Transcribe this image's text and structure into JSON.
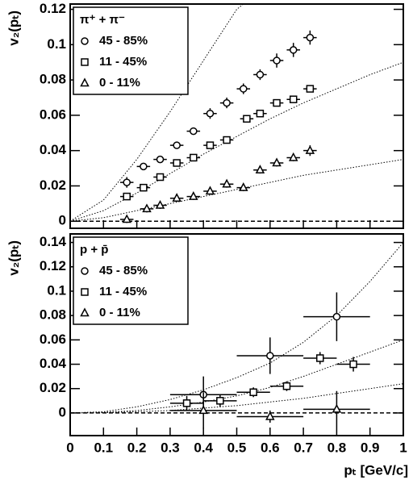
{
  "chart_data": [
    {
      "type": "scatter",
      "ylabel": "v₂(pₜ)",
      "legend_title": "π⁺ + π⁻",
      "legend": "upper left",
      "xlim": [
        0,
        1
      ],
      "xticks": [
        0,
        0.1,
        0.2,
        0.3,
        0.4,
        0.5,
        0.6,
        0.7,
        0.8,
        0.9,
        1
      ],
      "ylim": [
        -0.004,
        0.123
      ],
      "yticks": [
        0,
        0.02,
        0.04,
        0.06,
        0.08,
        0.1,
        0.12
      ],
      "zero_line": true,
      "series": [
        {
          "name": "45 - 85%",
          "marker": "circle",
          "color": "#000000",
          "x": [
            0.17,
            0.22,
            0.27,
            0.32,
            0.37,
            0.42,
            0.47,
            0.52,
            0.57,
            0.62,
            0.67,
            0.72
          ],
          "values": [
            0.022,
            0.031,
            0.035,
            0.043,
            0.051,
            0.061,
            0.067,
            0.075,
            0.083,
            0.091,
            0.097,
            0.104
          ],
          "errors": [
            0.003,
            0.002,
            0.002,
            0.002,
            0.002,
            0.003,
            0.003,
            0.003,
            0.003,
            0.004,
            0.004,
            0.004
          ],
          "xerrors": [
            0.02,
            0.02,
            0.02,
            0.02,
            0.02,
            0.02,
            0.02,
            0.02,
            0.02,
            0.02,
            0.02,
            0.02
          ]
        },
        {
          "name": "11 - 45%",
          "marker": "square",
          "color": "#000000",
          "x": [
            0.17,
            0.22,
            0.27,
            0.32,
            0.37,
            0.42,
            0.47,
            0.53,
            0.57,
            0.62,
            0.67,
            0.72
          ],
          "values": [
            0.014,
            0.019,
            0.025,
            0.033,
            0.036,
            0.043,
            0.046,
            0.058,
            0.061,
            0.067,
            0.069,
            0.075
          ],
          "errors": [
            0.002,
            0.002,
            0.002,
            0.002,
            0.002,
            0.002,
            0.002,
            0.002,
            0.002,
            0.002,
            0.002,
            0.002
          ],
          "xerrors": [
            0.02,
            0.02,
            0.02,
            0.02,
            0.02,
            0.02,
            0.02,
            0.02,
            0.02,
            0.02,
            0.02,
            0.02
          ]
        },
        {
          "name": "0 - 11%",
          "marker": "triangle",
          "color": "#000000",
          "x": [
            0.17,
            0.23,
            0.27,
            0.32,
            0.37,
            0.42,
            0.47,
            0.52,
            0.57,
            0.62,
            0.67,
            0.72
          ],
          "values": [
            0.001,
            0.007,
            0.009,
            0.013,
            0.014,
            0.017,
            0.021,
            0.019,
            0.029,
            0.033,
            0.036,
            0.04
          ],
          "errors": [
            0.002,
            0.002,
            0.002,
            0.002,
            0.002,
            0.002,
            0.002,
            0.002,
            0.002,
            0.002,
            0.002,
            0.003
          ],
          "xerrors": [
            0.02,
            0.02,
            0.02,
            0.02,
            0.02,
            0.02,
            0.02,
            0.02,
            0.02,
            0.02,
            0.02,
            0.02
          ]
        }
      ],
      "curves": [
        {
          "x": [
            0,
            0.1,
            0.2,
            0.3,
            0.4,
            0.5,
            0.52
          ],
          "values": [
            0,
            0.012,
            0.035,
            0.062,
            0.091,
            0.12,
            0.123
          ]
        },
        {
          "x": [
            0,
            0.1,
            0.2,
            0.3,
            0.4,
            0.5,
            0.6,
            0.7,
            0.8,
            0.9,
            1
          ],
          "values": [
            0,
            0.006,
            0.016,
            0.027,
            0.038,
            0.048,
            0.058,
            0.067,
            0.075,
            0.083,
            0.09
          ]
        },
        {
          "x": [
            0,
            0.1,
            0.2,
            0.3,
            0.4,
            0.5,
            0.6,
            0.7,
            0.8,
            0.9,
            1
          ],
          "values": [
            0,
            0.002,
            0.006,
            0.01,
            0.014,
            0.018,
            0.022,
            0.026,
            0.029,
            0.032,
            0.035
          ]
        }
      ]
    },
    {
      "type": "scatter",
      "ylabel": "v₂(pₜ)",
      "xlabel": "pₜ [GeV/c]",
      "legend_title": "p + p̄",
      "legend": "upper left",
      "xlim": [
        0,
        1
      ],
      "xticks": [
        0,
        0.1,
        0.2,
        0.3,
        0.4,
        0.5,
        0.6,
        0.7,
        0.8,
        0.9,
        1
      ],
      "ylim": [
        -0.0186,
        0.147
      ],
      "yticks": [
        0,
        0.02,
        0.04,
        0.06,
        0.08,
        0.1,
        0.12,
        0.14
      ],
      "zero_line": true,
      "series": [
        {
          "name": "45 - 85%",
          "marker": "circle",
          "color": "#000000",
          "x": [
            0.4,
            0.6,
            0.8
          ],
          "values": [
            0.015,
            0.047,
            0.079
          ],
          "errors": [
            0.015,
            0.015,
            0.02
          ],
          "xerrors": [
            0.1,
            0.1,
            0.1
          ]
        },
        {
          "name": "11 - 45%",
          "marker": "square",
          "color": "#000000",
          "x": [
            0.35,
            0.45,
            0.55,
            0.65,
            0.75,
            0.85
          ],
          "values": [
            0.008,
            0.01,
            0.017,
            0.022,
            0.045,
            0.04
          ],
          "errors": [
            0.006,
            0.005,
            0.004,
            0.004,
            0.005,
            0.006
          ],
          "xerrors": [
            0.05,
            0.05,
            0.05,
            0.05,
            0.05,
            0.05
          ]
        },
        {
          "name": "0 - 11%",
          "marker": "triangle",
          "color": "#000000",
          "x": [
            0.4,
            0.6,
            0.8
          ],
          "values": [
            0.002,
            -0.003,
            0.003
          ],
          "errors": [
            0.015,
            0.005,
            0.015
          ],
          "xerrors": [
            0.1,
            0.1,
            0.1
          ]
        }
      ],
      "curves": [
        {
          "x": [
            0,
            0.1,
            0.2,
            0.3,
            0.4,
            0.5,
            0.6,
            0.7,
            0.8,
            0.9,
            1
          ],
          "values": [
            0,
            0.001,
            0.005,
            0.011,
            0.019,
            0.029,
            0.041,
            0.058,
            0.08,
            0.108,
            0.14
          ]
        },
        {
          "x": [
            0,
            0.1,
            0.2,
            0.3,
            0.4,
            0.5,
            0.6,
            0.7,
            0.8,
            0.9,
            1
          ],
          "values": [
            0,
            0.0005,
            0.002,
            0.005,
            0.009,
            0.014,
            0.021,
            0.03,
            0.04,
            0.05,
            0.06
          ]
        },
        {
          "x": [
            0,
            0.1,
            0.2,
            0.3,
            0.4,
            0.5,
            0.6,
            0.7,
            0.8,
            0.9,
            1
          ],
          "values": [
            0,
            0.0002,
            0.001,
            0.002,
            0.004,
            0.006,
            0.009,
            0.012,
            0.016,
            0.02,
            0.024
          ]
        }
      ]
    }
  ]
}
